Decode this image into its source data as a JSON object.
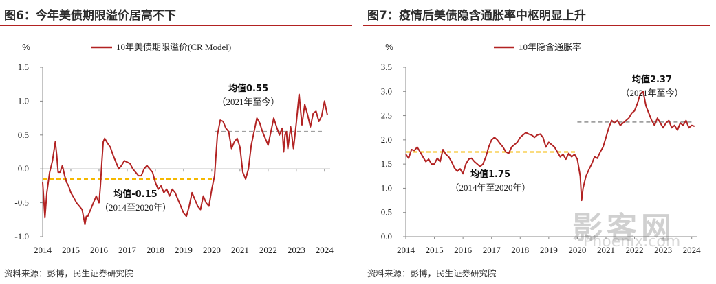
{
  "colors": {
    "series": "#b22222",
    "mean_past": "#f5b800",
    "mean_recent": "#a0a0a0",
    "rule": "#b22222"
  },
  "watermark": {
    "main": "影客网",
    "sub": "Phoenix.com"
  },
  "chart_data": [
    {
      "panel_title": "图6：今年美债期限溢价居高不下",
      "type": "line",
      "unit_label": "%",
      "legend": "10年美债期限溢价(CR Model)",
      "xlim": [
        2014,
        2024.2
      ],
      "ylim": [
        -1.0,
        1.5
      ],
      "xticks": [
        2014,
        2015,
        2016,
        2017,
        2018,
        2019,
        2020,
        2021,
        2022,
        2023,
        2024
      ],
      "yticks": [
        -1.0,
        -0.5,
        0.0,
        0.5,
        1.0,
        1.5
      ],
      "ytick_labels": [
        "-1.0",
        "-0.5",
        "0.0",
        "0.5",
        "1.0",
        "1.5"
      ],
      "series": [
        {
          "name": "10年美债期限溢价(CR Model)",
          "x": [
            2014.0,
            2014.08,
            2014.15,
            2014.25,
            2014.35,
            2014.45,
            2014.5,
            2014.55,
            2014.62,
            2014.7,
            2014.78,
            2014.85,
            2014.92,
            2015.0,
            2015.1,
            2015.2,
            2015.3,
            2015.4,
            2015.5,
            2015.55,
            2015.6,
            2015.7,
            2015.8,
            2015.9,
            2016.0,
            2016.05,
            2016.1,
            2016.15,
            2016.2,
            2016.3,
            2016.4,
            2016.5,
            2016.6,
            2016.7,
            2016.8,
            2016.9,
            2017.0,
            2017.1,
            2017.2,
            2017.3,
            2017.4,
            2017.5,
            2017.6,
            2017.7,
            2017.8,
            2017.9,
            2018.0,
            2018.1,
            2018.2,
            2018.3,
            2018.4,
            2018.5,
            2018.6,
            2018.7,
            2018.8,
            2018.9,
            2019.0,
            2019.1,
            2019.2,
            2019.3,
            2019.4,
            2019.5,
            2019.6,
            2019.7,
            2019.8,
            2019.9,
            2020.0,
            2020.1,
            2020.15,
            2020.2,
            2020.3,
            2020.4,
            2020.5,
            2020.6,
            2020.7,
            2020.8,
            2020.9,
            2021.0,
            2021.1,
            2021.2,
            2021.3,
            2021.4,
            2021.5,
            2021.6,
            2021.7,
            2021.8,
            2021.9,
            2022.0,
            2022.1,
            2022.2,
            2022.3,
            2022.4,
            2022.5,
            2022.55,
            2022.6,
            2022.65,
            2022.7,
            2022.8,
            2022.9,
            2023.0,
            2023.1,
            2023.2,
            2023.3,
            2023.4,
            2023.5,
            2023.6,
            2023.7,
            2023.8,
            2023.9,
            2024.0,
            2024.1
          ],
          "values": [
            -0.2,
            -0.72,
            -0.35,
            -0.05,
            0.12,
            0.4,
            0.2,
            -0.05,
            -0.05,
            0.05,
            -0.1,
            -0.2,
            -0.25,
            -0.35,
            -0.42,
            -0.5,
            -0.55,
            -0.6,
            -0.82,
            -0.7,
            -0.7,
            -0.6,
            -0.5,
            -0.4,
            -0.5,
            -0.25,
            0.1,
            0.4,
            0.45,
            0.38,
            0.32,
            0.2,
            0.1,
            0.0,
            0.05,
            0.12,
            0.1,
            0.08,
            0.0,
            -0.05,
            -0.1,
            -0.1,
            0.0,
            0.05,
            0.0,
            -0.05,
            -0.2,
            -0.3,
            -0.25,
            -0.35,
            -0.3,
            -0.4,
            -0.3,
            -0.35,
            -0.45,
            -0.55,
            -0.65,
            -0.7,
            -0.55,
            -0.35,
            -0.45,
            -0.55,
            -0.6,
            -0.4,
            -0.5,
            -0.55,
            -0.3,
            -0.1,
            0.2,
            0.5,
            0.72,
            0.7,
            0.6,
            0.55,
            0.3,
            0.4,
            0.45,
            0.32,
            -0.05,
            -0.15,
            0.0,
            0.35,
            0.55,
            0.75,
            0.68,
            0.55,
            0.45,
            0.35,
            0.55,
            0.75,
            0.62,
            0.5,
            0.6,
            0.25,
            0.5,
            0.55,
            0.3,
            0.62,
            0.3,
            0.68,
            1.1,
            0.65,
            0.95,
            0.8,
            0.62,
            0.82,
            0.85,
            0.7,
            0.78,
            1.0,
            0.8
          ]
        }
      ],
      "mean_lines": [
        {
          "x_start": 2014,
          "x_end": 2020.1,
          "value": -0.15,
          "style": "past",
          "label": "均值-0.15",
          "sub_label": "（2014至2020年）"
        },
        {
          "x_start": 2020.1,
          "x_end": 2024.0,
          "value": 0.55,
          "style": "recent",
          "label": "均值0.55",
          "sub_label": "（2021年至今）"
        }
      ]
    },
    {
      "panel_title": "图7：疫情后美债隐含通胀率中枢明显上升",
      "type": "line",
      "unit_label": "%",
      "legend": "10年隐含通胀率",
      "xlim": [
        2014,
        2024.2
      ],
      "ylim": [
        0.0,
        3.5
      ],
      "xticks": [
        2014,
        2015,
        2016,
        2017,
        2018,
        2019,
        2020,
        2021,
        2022,
        2023,
        2024
      ],
      "yticks": [
        0.0,
        0.5,
        1.0,
        1.5,
        2.0,
        2.5,
        3.0,
        3.5
      ],
      "ytick_labels": [
        "0.0",
        "0.5",
        "1.0",
        "1.5",
        "2.0",
        "2.5",
        "3.0",
        "3.5"
      ],
      "series": [
        {
          "name": "10年隐含通胀率",
          "x": [
            2014.0,
            2014.1,
            2014.2,
            2014.3,
            2014.4,
            2014.5,
            2014.6,
            2014.7,
            2014.8,
            2014.9,
            2015.0,
            2015.1,
            2015.2,
            2015.3,
            2015.4,
            2015.5,
            2015.6,
            2015.7,
            2015.8,
            2015.9,
            2016.0,
            2016.1,
            2016.2,
            2016.3,
            2016.4,
            2016.5,
            2016.6,
            2016.7,
            2016.8,
            2016.9,
            2017.0,
            2017.1,
            2017.2,
            2017.3,
            2017.4,
            2017.5,
            2017.6,
            2017.7,
            2017.8,
            2017.9,
            2018.0,
            2018.1,
            2018.2,
            2018.3,
            2018.4,
            2018.5,
            2018.6,
            2018.7,
            2018.8,
            2018.9,
            2019.0,
            2019.1,
            2019.2,
            2019.3,
            2019.4,
            2019.5,
            2019.6,
            2019.7,
            2019.8,
            2019.9,
            2020.0,
            2020.1,
            2020.15,
            2020.2,
            2020.3,
            2020.4,
            2020.5,
            2020.6,
            2020.7,
            2020.8,
            2020.9,
            2021.0,
            2021.1,
            2021.2,
            2021.3,
            2021.4,
            2021.5,
            2021.6,
            2021.7,
            2021.8,
            2021.9,
            2022.0,
            2022.1,
            2022.2,
            2022.3,
            2022.4,
            2022.5,
            2022.6,
            2022.7,
            2022.8,
            2022.9,
            2023.0,
            2023.1,
            2023.2,
            2023.3,
            2023.4,
            2023.5,
            2023.6,
            2023.7,
            2023.8,
            2023.9,
            2024.0,
            2024.1
          ],
          "values": [
            1.7,
            1.62,
            1.8,
            1.78,
            1.85,
            1.75,
            1.65,
            1.55,
            1.6,
            1.5,
            1.5,
            1.62,
            1.55,
            1.8,
            1.7,
            1.65,
            1.55,
            1.42,
            1.35,
            1.4,
            1.3,
            1.5,
            1.6,
            1.62,
            1.55,
            1.5,
            1.45,
            1.5,
            1.65,
            1.85,
            2.0,
            2.05,
            2.0,
            1.92,
            1.85,
            1.75,
            1.72,
            1.85,
            1.9,
            1.95,
            2.05,
            2.1,
            2.15,
            2.12,
            2.1,
            2.05,
            2.1,
            2.12,
            2.05,
            1.85,
            1.95,
            1.9,
            1.85,
            1.75,
            1.65,
            1.7,
            1.6,
            1.72,
            1.65,
            1.7,
            1.6,
            1.25,
            0.75,
            1.0,
            1.25,
            1.38,
            1.5,
            1.65,
            1.62,
            1.75,
            1.85,
            2.05,
            2.25,
            2.4,
            2.35,
            2.4,
            2.3,
            2.35,
            2.4,
            2.45,
            2.55,
            2.6,
            2.75,
            2.95,
            3.0,
            2.7,
            2.55,
            2.4,
            2.3,
            2.45,
            2.35,
            2.25,
            2.35,
            2.4,
            2.25,
            2.3,
            2.2,
            2.35,
            2.3,
            2.4,
            2.25,
            2.3,
            2.28
          ]
        }
      ],
      "mean_lines": [
        {
          "x_start": 2014,
          "x_end": 2020.0,
          "value": 1.75,
          "style": "past",
          "label": "均值1.75",
          "sub_label": "（2014年至2020年）"
        },
        {
          "x_start": 2020.0,
          "x_end": 2024.0,
          "value": 2.37,
          "style": "recent",
          "label": "均值2.37",
          "sub_label": "（2021年至今）"
        }
      ]
    }
  ],
  "panels": [
    {
      "title": "图6：今年美债期限溢价居高不下",
      "source": "资料来源：彭博，民生证券研究院"
    },
    {
      "title": "图7：疫情后美债隐含通胀率中枢明显上升",
      "source": "资料来源：彭博，民生证券研究院"
    }
  ]
}
